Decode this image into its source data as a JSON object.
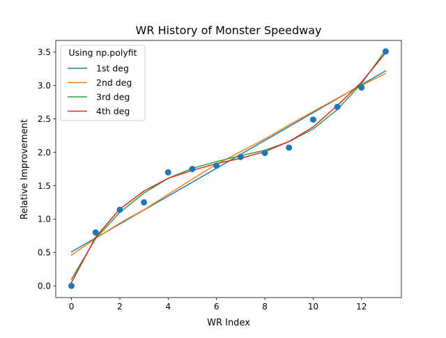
{
  "chart_data": {
    "type": "scatter",
    "title": "WR History of Monster Speedway",
    "xlabel": "WR Index",
    "ylabel": "Relative Improvement",
    "xlim": [
      -0.65,
      13.65
    ],
    "ylim": [
      -0.175,
      3.675
    ],
    "xticks": [
      0,
      2,
      4,
      6,
      8,
      10,
      12
    ],
    "yticks": [
      0.0,
      0.5,
      1.0,
      1.5,
      2.0,
      2.5,
      3.0,
      3.5
    ],
    "xtick_labels": [
      "0",
      "2",
      "4",
      "6",
      "8",
      "10",
      "12"
    ],
    "ytick_labels": [
      "0.0",
      "0.5",
      "1.0",
      "1.5",
      "2.0",
      "2.5",
      "3.0",
      "3.5"
    ],
    "grid": false,
    "legend": {
      "title": "Using np.polyfit",
      "placement": "top-left"
    },
    "points": {
      "color": "#1f77b4",
      "x": [
        0,
        1,
        2,
        3,
        4,
        5,
        6,
        7,
        8,
        9,
        10,
        11,
        12,
        13
      ],
      "y": [
        0.0,
        0.8,
        1.14,
        1.25,
        1.7,
        1.75,
        1.8,
        1.93,
        1.99,
        2.07,
        2.49,
        2.68,
        2.97,
        3.51
      ]
    },
    "series": [
      {
        "name": "1st deg",
        "color": "#1f77b4",
        "x": [
          0,
          13
        ],
        "y": [
          0.51,
          3.22
        ]
      },
      {
        "name": "2nd deg",
        "color": "#ff7f0e",
        "x": [
          0,
          1,
          2,
          3,
          4,
          5,
          6,
          7,
          8,
          9,
          10,
          11,
          12,
          13
        ],
        "y": [
          0.46,
          0.71,
          0.94,
          1.14,
          1.37,
          1.6,
          1.82,
          2.01,
          2.2,
          2.41,
          2.61,
          2.81,
          3.0,
          3.18
        ]
      },
      {
        "name": "3rd deg",
        "color": "#2ca02c",
        "x": [
          0,
          1,
          2,
          3,
          4,
          5,
          6,
          7,
          8,
          9,
          10,
          11,
          12,
          13
        ],
        "y": [
          0.1,
          0.71,
          1.1,
          1.39,
          1.61,
          1.76,
          1.86,
          1.95,
          2.03,
          2.16,
          2.35,
          2.64,
          3.03,
          3.53
        ]
      },
      {
        "name": "4th deg",
        "color": "#d62728",
        "x": [
          0,
          1,
          2,
          3,
          4,
          5,
          6,
          7,
          8,
          9,
          10,
          11,
          12,
          13
        ],
        "y": [
          0.05,
          0.73,
          1.15,
          1.42,
          1.61,
          1.73,
          1.83,
          1.91,
          2.01,
          2.16,
          2.38,
          2.7,
          3.05,
          3.49
        ]
      }
    ]
  }
}
